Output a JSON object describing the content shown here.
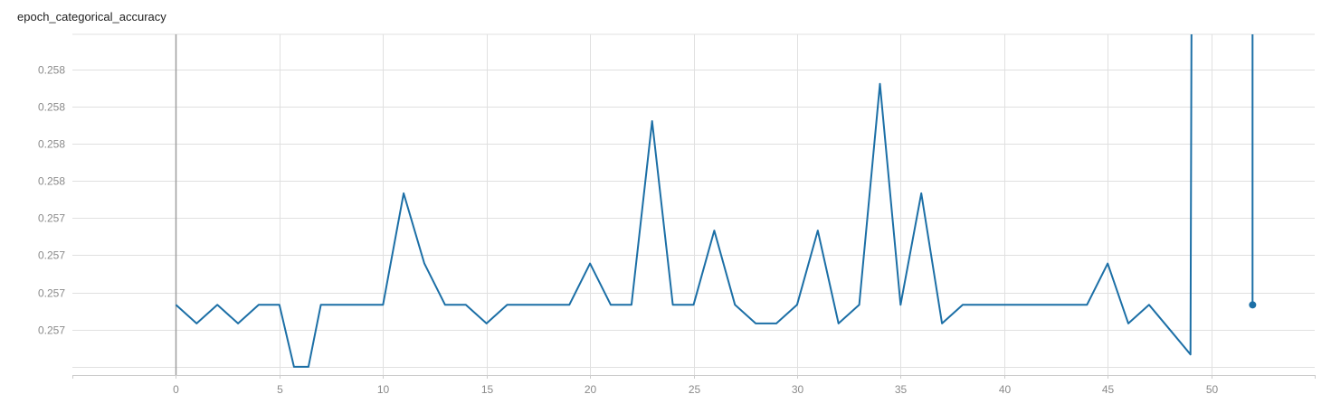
{
  "card": {
    "title": "epoch_categorical_accuracy"
  },
  "toolbar": {
    "items": [
      {
        "icon": "fullscreen-icon"
      },
      {
        "icon": "menu-icon"
      },
      {
        "icon": "fit-domain-icon"
      }
    ]
  },
  "colors": {
    "series": "#1c6fa6",
    "grid": "#e0e0e0",
    "axis": "#cccccc",
    "tick_text": "#8a8a8a",
    "active_line": "#9e9e9e"
  },
  "chart_data": {
    "type": "line",
    "title": "epoch_categorical_accuracy",
    "xlabel": "",
    "ylabel": "",
    "xlim": [
      -5,
      55
    ],
    "ylim": [
      0.25662,
      0.25827
    ],
    "x_ticks": [
      0,
      5,
      10,
      15,
      20,
      25,
      30,
      35,
      40,
      45,
      50
    ],
    "x_tick_labels": [
      "0",
      "5",
      "10",
      "15",
      "20",
      "25",
      "30",
      "35",
      "40",
      "45",
      "50"
    ],
    "y_ticks": [
      0.25666,
      0.25684,
      0.25702,
      0.2572,
      0.25738,
      0.25756,
      0.25774,
      0.25792,
      0.2581
    ],
    "y_tick_labels": [
      "",
      "0.257",
      "0.257",
      "0.257",
      "0.257",
      "0.258",
      "0.258",
      "0.258",
      "0.258"
    ],
    "grid": true,
    "active_x": 0,
    "series": [
      {
        "values": [
          [
            0,
            0.25696
          ],
          [
            1,
            0.25687
          ],
          [
            2,
            0.25696
          ],
          [
            3,
            0.25687
          ],
          [
            4,
            0.25696
          ],
          [
            5,
            0.25696
          ],
          [
            5.7,
            0.25666
          ],
          [
            6.4,
            0.25666
          ],
          [
            7,
            0.25696
          ],
          [
            8,
            0.25696
          ],
          [
            9,
            0.25696
          ],
          [
            10,
            0.25696
          ],
          [
            11,
            0.2575
          ],
          [
            12,
            0.25716
          ],
          [
            13,
            0.25696
          ],
          [
            14,
            0.25696
          ],
          [
            15,
            0.25687
          ],
          [
            16,
            0.25696
          ],
          [
            17,
            0.25696
          ],
          [
            18,
            0.25696
          ],
          [
            19,
            0.25696
          ],
          [
            20,
            0.25716
          ],
          [
            21,
            0.25696
          ],
          [
            22,
            0.25696
          ],
          [
            23,
            0.25785
          ],
          [
            24,
            0.25696
          ],
          [
            25,
            0.25696
          ],
          [
            26,
            0.25732
          ],
          [
            27,
            0.25696
          ],
          [
            28,
            0.25687
          ],
          [
            29,
            0.25687
          ],
          [
            30,
            0.25696
          ],
          [
            31,
            0.25732
          ],
          [
            32,
            0.25687
          ],
          [
            33,
            0.25696
          ],
          [
            34,
            0.25803
          ],
          [
            35,
            0.25696
          ],
          [
            36,
            0.2575
          ],
          [
            37,
            0.25687
          ],
          [
            38,
            0.25696
          ],
          [
            39,
            0.25696
          ],
          [
            40,
            0.25696
          ],
          [
            41,
            0.25696
          ],
          [
            42,
            0.25696
          ],
          [
            43,
            0.25696
          ],
          [
            44,
            0.25696
          ],
          [
            45,
            0.25716
          ],
          [
            46,
            0.25687
          ],
          [
            47,
            0.25696
          ],
          [
            48,
            0.25684
          ],
          [
            49,
            0.25672
          ],
          [
            49.05,
            0.25827
          ]
        ]
      },
      {
        "values": [
          [
            52,
            0.25827
          ],
          [
            52,
            0.25696
          ]
        ],
        "end_marker": true
      }
    ]
  }
}
